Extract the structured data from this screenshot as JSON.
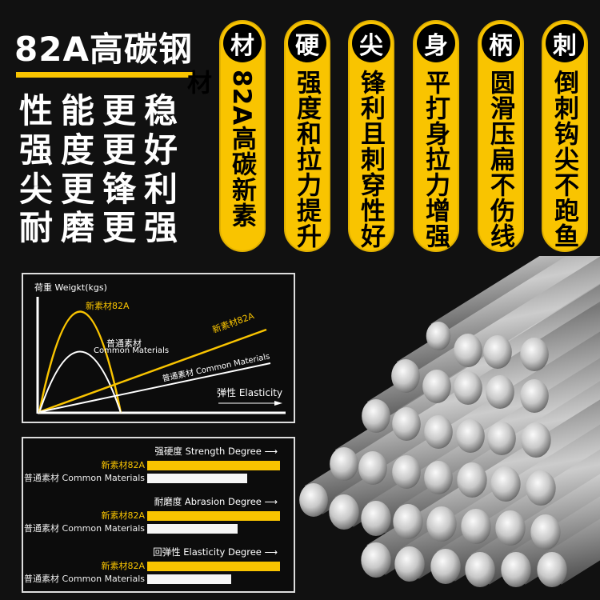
{
  "headline": {
    "title": "82A高碳钢",
    "slogans": [
      "性能更稳",
      "强度更好",
      "尖更锋利",
      "耐磨更强"
    ]
  },
  "colors": {
    "accent": "#f9c400",
    "background": "#111111",
    "white_bar": "#f5f5f5"
  },
  "features": [
    {
      "badge": "材",
      "text": "82A高碳新素材"
    },
    {
      "badge": "硬",
      "text": "强度和拉力提升"
    },
    {
      "badge": "尖",
      "text": "锋利且刺穿性好"
    },
    {
      "badge": "身",
      "text": "平打身拉力增强"
    },
    {
      "badge": "柄",
      "text": "圆滑压扁不伤线"
    },
    {
      "badge": "刺",
      "text": "倒刺钩尖不跑鱼"
    }
  ],
  "curve_chart": {
    "ylabel": "荷重 Weigkt(kgs)",
    "xlabel": "弹性 Elasticity",
    "arch_new": "新素材82A",
    "arch_common_cn": "普通素材",
    "arch_common_en": "Common Materials",
    "line_new": "新素材82A",
    "line_common": "普通素材 Common Materials"
  },
  "chart_data": {
    "type": "bar",
    "orientation": "horizontal",
    "categories": [
      "强硬度 Strength Degree",
      "耐磨度 Abrasion Degree",
      "回弹性 Elasticity Degree"
    ],
    "series": [
      {
        "name": "新素材82A",
        "values": [
          100,
          100,
          100
        ],
        "color": "#f9c400"
      },
      {
        "name": "普通素材 Common Materials",
        "values": [
          75,
          68,
          63
        ],
        "color": "#f5f5f5"
      }
    ]
  }
}
